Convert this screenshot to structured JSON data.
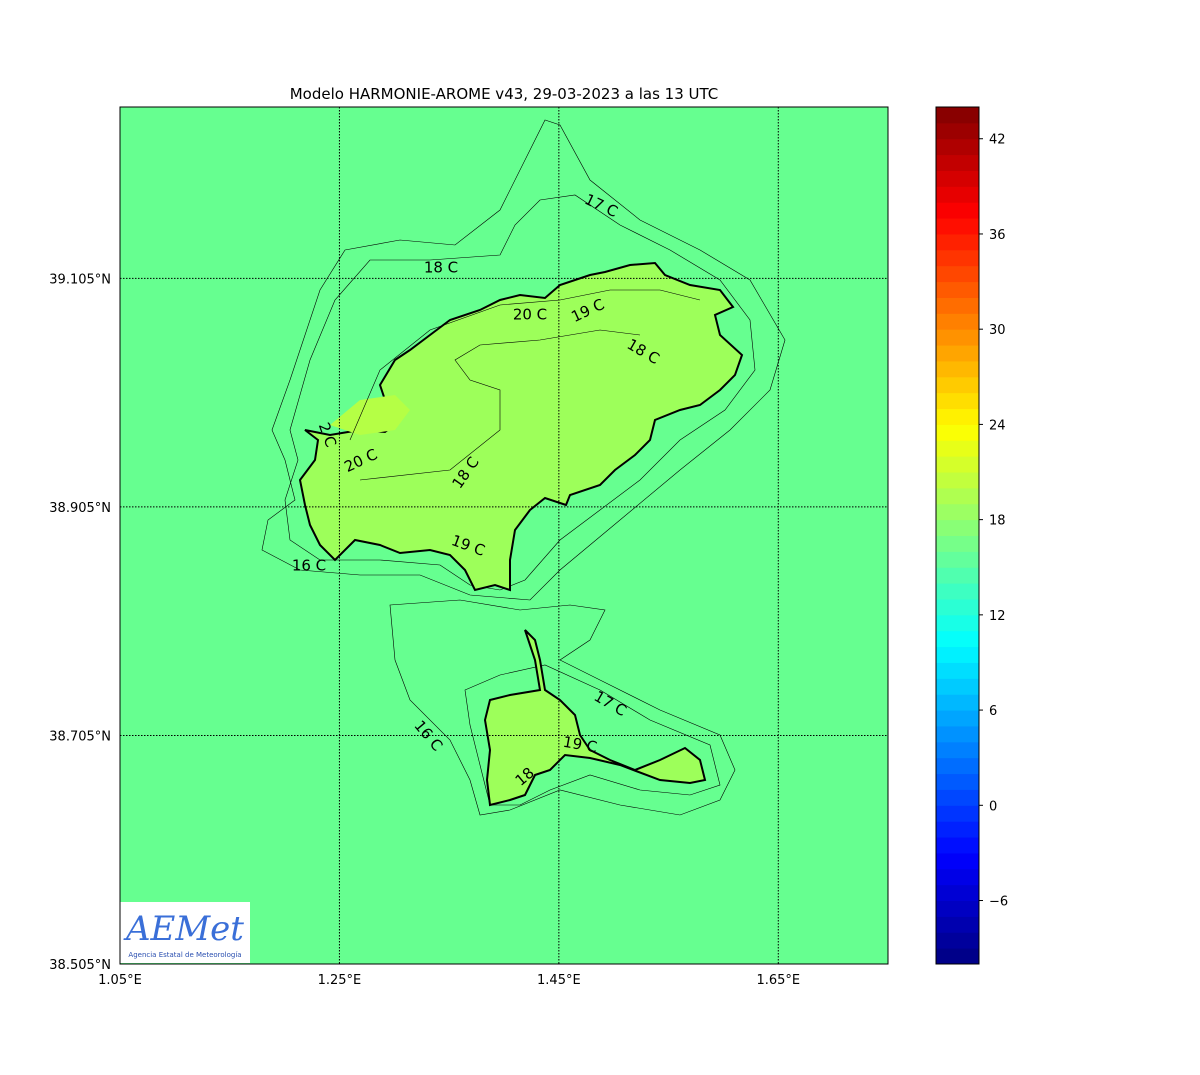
{
  "title": "Modelo HARMONIE-AROME v43, 29-03-2023 a las 13 UTC",
  "map": {
    "xlim": [
      1.05,
      1.75
    ],
    "ylim": [
      38.505,
      39.255
    ],
    "xticks": [
      {
        "value": 1.05,
        "label": "1.05°E"
      },
      {
        "value": 1.25,
        "label": "1.25°E"
      },
      {
        "value": 1.45,
        "label": "1.45°E"
      },
      {
        "value": 1.65,
        "label": "1.65°E"
      }
    ],
    "yticks": [
      {
        "value": 38.505,
        "label": "38.505°N"
      },
      {
        "value": 38.705,
        "label": "38.705°N"
      },
      {
        "value": 38.905,
        "label": "38.905°N"
      },
      {
        "value": 39.105,
        "label": "39.105°N"
      }
    ],
    "contour_labels": [
      "17 C",
      "18 C",
      "20 C",
      "19 C",
      "18 C",
      "2 C",
      "20 C",
      "18 C",
      "19 C",
      "16 C",
      "17 C",
      "16 C",
      "19 C",
      "18"
    ]
  },
  "colorbar": {
    "lim": [
      -10,
      44
    ],
    "ticks": [
      {
        "value": -6,
        "label": "−6"
      },
      0,
      6,
      12,
      18,
      24,
      30,
      36,
      42
    ]
  },
  "logo": {
    "name": "AEMet",
    "subtitle": "Agencia Estatal de Meteorología"
  }
}
